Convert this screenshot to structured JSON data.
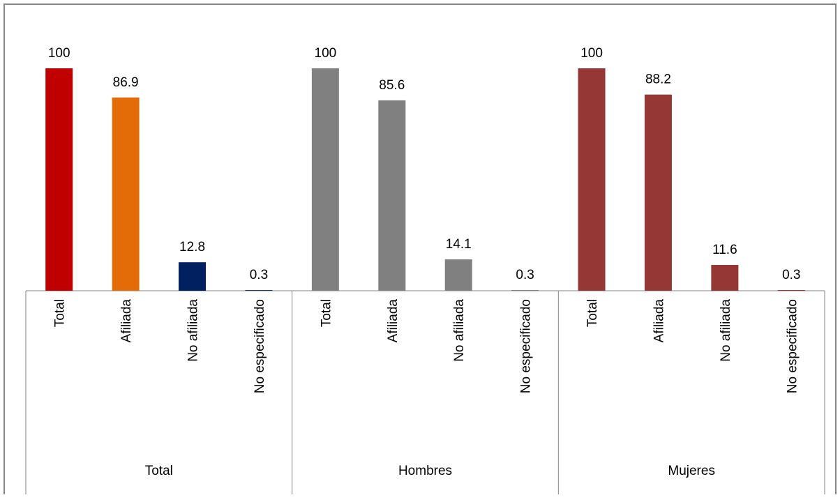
{
  "chart_data": {
    "type": "bar",
    "title": "",
    "xlabel": "",
    "ylabel": "",
    "ylim": [
      0,
      100
    ],
    "grid": false,
    "legend": "none",
    "groups": [
      {
        "label": "Total",
        "bars": [
          {
            "category": "Total",
            "value": 100,
            "label": "100",
            "color": "#c00000"
          },
          {
            "category": "Afiliada",
            "value": 86.9,
            "label": "86.9",
            "color": "#e36c09"
          },
          {
            "category": "No afiliada",
            "value": 12.8,
            "label": "12.8",
            "color": "#002060"
          },
          {
            "category": "No especificado",
            "value": 0.3,
            "label": "0.3",
            "color": "#1f3864"
          }
        ]
      },
      {
        "label": "Hombres",
        "bars": [
          {
            "category": "Total",
            "value": 100,
            "label": "100",
            "color": "#808080"
          },
          {
            "category": "Afiliada",
            "value": 85.6,
            "label": "85.6",
            "color": "#808080"
          },
          {
            "category": "No afiliada",
            "value": 14.1,
            "label": "14.1",
            "color": "#808080"
          },
          {
            "category": "No especificado",
            "value": 0.3,
            "label": "0.3",
            "color": "#808080"
          }
        ]
      },
      {
        "label": "Mujeres",
        "bars": [
          {
            "category": "Total",
            "value": 100,
            "label": "100",
            "color": "#953735"
          },
          {
            "category": "Afiliada",
            "value": 88.2,
            "label": "88.2",
            "color": "#953735"
          },
          {
            "category": "No afiliada",
            "value": 11.6,
            "label": "11.6",
            "color": "#953735"
          },
          {
            "category": "No especificado",
            "value": 0.3,
            "label": "0.3",
            "color": "#953735"
          }
        ]
      }
    ],
    "colors": {
      "frame": "#868686",
      "axis": "#868686"
    }
  }
}
